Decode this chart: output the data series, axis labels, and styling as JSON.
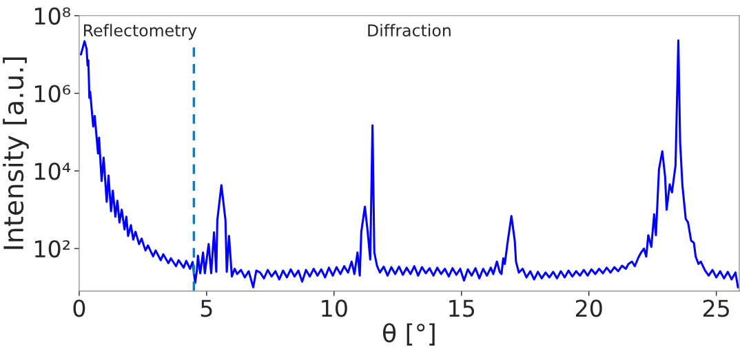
{
  "chart_data": {
    "type": "line",
    "xlabel": "θ [°]",
    "ylabel": "Intensity [a.u.]",
    "log": "y",
    "xlim": [
      0,
      25.9
    ],
    "xticks": [
      0,
      5,
      10,
      15,
      20,
      25
    ],
    "ylim": [
      8,
      100000000
    ],
    "yticks": [
      {
        "value": 100,
        "label": "10²"
      },
      {
        "value": 10000,
        "label": "10⁴"
      },
      {
        "value": 1000000,
        "label": "10⁶"
      },
      {
        "value": 100000000,
        "label": "10⁸"
      }
    ],
    "grid": false,
    "legend": false,
    "line_style": "solid",
    "marker": "none",
    "annotations": [
      "Reflectometry",
      "Diffraction"
    ],
    "ref_lines": [
      {
        "axis": "x",
        "value": 4.5,
        "label": null,
        "color": "#1f77b4",
        "line_style": "dashed"
      }
    ],
    "series": [
      {
        "color": "#0000ff",
        "x": [
          0.07,
          0.21,
          0.29,
          0.33,
          0.36,
          0.4,
          0.43,
          0.55,
          0.61,
          0.74,
          0.78,
          0.88,
          0.96,
          1.08,
          1.15,
          1.25,
          1.32,
          1.42,
          1.5,
          1.58,
          1.67,
          1.78,
          1.85,
          1.92,
          2.03,
          2.12,
          2.21,
          2.35,
          2.45,
          2.6,
          2.7,
          2.9,
          3.0,
          3.2,
          3.3,
          3.5,
          3.6,
          3.8,
          3.9,
          4.1,
          4.2,
          4.35,
          4.45,
          4.55,
          4.62,
          4.66,
          4.75,
          4.86,
          4.93,
          5.08,
          5.18,
          5.29,
          5.38,
          5.42,
          5.58,
          5.74,
          5.79,
          5.88,
          5.99,
          6.1,
          6.2,
          6.35,
          6.5,
          6.65,
          6.83,
          6.95,
          7.1,
          7.25,
          7.4,
          7.55,
          7.7,
          7.85,
          8.0,
          8.15,
          8.3,
          8.45,
          8.6,
          8.75,
          8.9,
          9.05,
          9.2,
          9.35,
          9.5,
          9.65,
          9.8,
          9.95,
          10.1,
          10.25,
          10.4,
          10.55,
          10.69,
          10.8,
          10.92,
          11.01,
          11.07,
          11.21,
          11.32,
          11.42,
          11.51,
          11.58,
          11.69,
          11.8,
          11.95,
          12.1,
          12.25,
          12.4,
          12.55,
          12.7,
          12.85,
          13.0,
          13.15,
          13.3,
          13.45,
          13.6,
          13.75,
          13.9,
          14.05,
          14.2,
          14.35,
          14.5,
          14.65,
          14.8,
          14.95,
          15.1,
          15.25,
          15.4,
          15.55,
          15.7,
          15.85,
          16.0,
          16.15,
          16.25,
          16.39,
          16.5,
          16.57,
          16.64,
          16.7,
          16.82,
          16.96,
          17.09,
          17.14,
          17.25,
          17.4,
          17.55,
          17.7,
          17.85,
          18.0,
          18.15,
          18.3,
          18.45,
          18.6,
          18.75,
          18.9,
          19.05,
          19.2,
          19.35,
          19.5,
          19.65,
          19.8,
          19.95,
          20.1,
          20.25,
          20.4,
          20.55,
          20.7,
          20.85,
          21.0,
          21.15,
          21.3,
          21.45,
          21.55,
          21.69,
          21.8,
          21.95,
          22.05,
          22.16,
          22.25,
          22.33,
          22.45,
          22.56,
          22.63,
          22.75,
          22.88,
          22.99,
          23.05,
          23.17,
          23.26,
          23.4,
          23.51,
          23.58,
          23.67,
          23.8,
          23.89,
          24.01,
          24.12,
          24.19,
          24.3,
          24.39,
          24.56,
          24.7,
          24.85,
          25.0,
          25.15,
          25.3,
          25.45,
          25.6,
          25.75,
          25.85
        ],
        "values": [
          10000000,
          22000000,
          14000000,
          5200000,
          7100000,
          760000,
          1100000,
          140000,
          260000,
          28000,
          72000,
          5500,
          22000,
          1600,
          7600,
          910,
          3100,
          660,
          1700,
          470,
          1000,
          310,
          660,
          210,
          400,
          170,
          270,
          130,
          180,
          89,
          120,
          63,
          89,
          50,
          71,
          42,
          56,
          35,
          50,
          32,
          48,
          30,
          45,
          13,
          28,
          65,
          23,
          79,
          23,
          130,
          23,
          260,
          25,
          540,
          4300,
          540,
          25,
          210,
          19,
          30,
          22,
          28,
          18,
          26,
          10,
          27,
          24,
          17,
          28,
          19,
          26,
          16,
          27,
          18,
          29,
          19,
          27,
          14,
          28,
          19,
          30,
          20,
          29,
          18,
          32,
          20,
          33,
          22,
          35,
          24,
          46,
          22,
          79,
          20,
          270,
          1200,
          270,
          52,
          150000,
          79,
          35,
          24,
          34,
          20,
          33,
          22,
          34,
          21,
          32,
          22,
          35,
          20,
          33,
          23,
          31,
          20,
          32,
          22,
          30,
          19,
          31,
          21,
          30,
          15,
          29,
          20,
          31,
          17,
          30,
          20,
          32,
          22,
          46,
          25,
          22,
          56,
          40,
          160,
          690,
          160,
          46,
          24,
          30,
          18,
          26,
          16,
          25,
          17,
          24,
          18,
          25,
          17,
          26,
          18,
          27,
          19,
          26,
          20,
          28,
          20,
          29,
          22,
          30,
          23,
          32,
          24,
          33,
          26,
          36,
          30,
          40,
          46,
          35,
          60,
          79,
          100,
          62,
          220,
          110,
          760,
          220,
          11000,
          32000,
          7100,
          1000,
          4500,
          2800,
          14000,
          23000000,
          55000,
          4200,
          580,
          470,
          160,
          140,
          62,
          40,
          46,
          27,
          20,
          28,
          18,
          26,
          17,
          25,
          16,
          24,
          10
        ]
      }
    ]
  }
}
